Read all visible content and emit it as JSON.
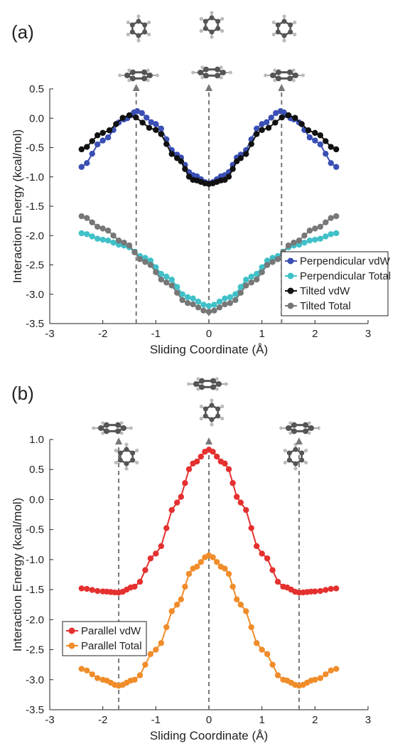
{
  "chart_data": [
    {
      "type": "scatter",
      "panel_label": "(a)",
      "xlabel": "Sliding Coordinate (Å)",
      "ylabel": "Interaction Energy (kcal/mol)",
      "xlim": [
        -3,
        3
      ],
      "ylim": [
        -3.5,
        0.5
      ],
      "xticks": [
        "-3",
        "-2",
        "-1",
        "0",
        "1",
        "2",
        "3"
      ],
      "yticks": [
        "-3.5",
        "-3.0",
        "-2.5",
        "-2.0",
        "-1.5",
        "-1.0",
        "-0.5",
        "0.0",
        "0.5"
      ],
      "grid": false,
      "legend": "bottom-right",
      "markers_x": [
        -1.37,
        0,
        1.37
      ],
      "series": [
        {
          "name": "Perpendicular vdW",
          "color": "#3a4fb4",
          "x": [
            -2.4,
            -2.0,
            -1.6,
            -1.35,
            -1.0,
            -0.6,
            -0.3,
            0.0,
            0.3,
            0.6,
            1.0,
            1.35,
            1.6,
            2.0,
            2.4
          ],
          "y": [
            -0.83,
            -0.38,
            -0.02,
            0.12,
            -0.1,
            -0.62,
            -0.97,
            -1.11,
            -0.97,
            -0.62,
            -0.1,
            0.12,
            -0.02,
            -0.38,
            -0.83
          ]
        },
        {
          "name": "Perpendicular Total",
          "color": "#40c0c8",
          "x": [
            -2.4,
            -2.0,
            -1.6,
            -1.2,
            -0.8,
            -0.4,
            0.0,
            0.4,
            0.8,
            1.2,
            1.6,
            2.0,
            2.4
          ],
          "y": [
            -1.96,
            -2.07,
            -2.17,
            -2.38,
            -2.7,
            -3.05,
            -3.2,
            -3.05,
            -2.7,
            -2.38,
            -2.17,
            -2.07,
            -1.96
          ]
        },
        {
          "name": "Tilted vdW",
          "color": "#111111",
          "x": [
            -2.4,
            -2.0,
            -1.5,
            -1.0,
            -0.6,
            -0.3,
            0.0,
            0.3,
            0.6,
            1.0,
            1.5,
            2.0,
            2.4
          ],
          "y": [
            -0.53,
            -0.25,
            0.05,
            -0.2,
            -0.68,
            -1.05,
            -1.12,
            -1.05,
            -0.68,
            -0.2,
            0.05,
            -0.25,
            -0.53
          ]
        },
        {
          "name": "Tilted Total",
          "color": "#777777",
          "x": [
            -2.4,
            -2.0,
            -1.6,
            -1.2,
            -0.8,
            -0.4,
            0.0,
            0.4,
            0.8,
            1.2,
            1.6,
            2.0,
            2.4
          ],
          "y": [
            -1.67,
            -1.88,
            -2.12,
            -2.45,
            -2.8,
            -3.15,
            -3.3,
            -3.15,
            -2.8,
            -2.45,
            -2.12,
            -1.88,
            -1.67
          ]
        }
      ]
    },
    {
      "type": "scatter",
      "panel_label": "(b)",
      "xlabel": "Sliding Coordinate (Å)",
      "ylabel": "Interaction Energy (kcal/mol)",
      "xlim": [
        -3,
        3
      ],
      "ylim": [
        -3.5,
        1.0
      ],
      "xticks": [
        "-3",
        "-2",
        "-1",
        "0",
        "1",
        "2",
        "3"
      ],
      "yticks": [
        "-3.5",
        "-3.0",
        "-2.5",
        "-2.0",
        "-1.5",
        "-1.0",
        "-0.5",
        "0.0",
        "0.5",
        "1.0"
      ],
      "grid": false,
      "legend": "bottom-left",
      "markers_x": [
        -1.7,
        0,
        1.7
      ],
      "series": [
        {
          "name": "Parallel vdW",
          "color": "#e53030",
          "x": [
            -2.4,
            -2.0,
            -1.7,
            -1.4,
            -1.0,
            -0.6,
            -0.3,
            0.0,
            0.3,
            0.6,
            1.0,
            1.4,
            1.7,
            2.0,
            2.4
          ],
          "y": [
            -1.48,
            -1.53,
            -1.55,
            -1.45,
            -0.9,
            -0.05,
            0.6,
            0.83,
            0.6,
            -0.05,
            -0.9,
            -1.45,
            -1.55,
            -1.53,
            -1.48
          ]
        },
        {
          "name": "Parallel Total",
          "color": "#f08c2a",
          "x": [
            -2.4,
            -2.0,
            -1.7,
            -1.4,
            -1.0,
            -0.6,
            -0.3,
            0.0,
            0.3,
            0.6,
            1.0,
            1.4,
            1.7,
            2.0,
            2.4
          ],
          "y": [
            -2.82,
            -3.0,
            -3.1,
            -3.0,
            -2.5,
            -1.75,
            -1.15,
            -0.93,
            -1.15,
            -1.75,
            -2.5,
            -3.0,
            -3.1,
            -3.0,
            -2.82
          ]
        }
      ]
    }
  ]
}
